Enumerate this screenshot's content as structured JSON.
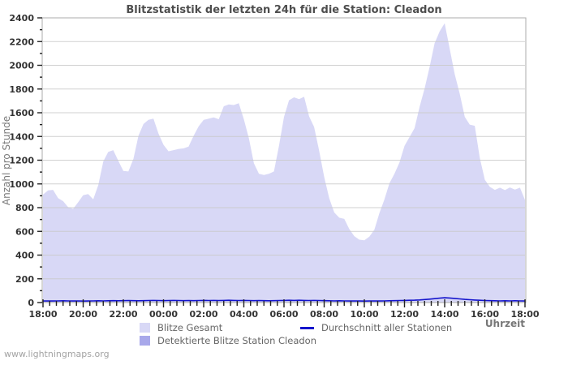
{
  "title": "Blitzstatistik der letzten 24h für die Station: Cleadon",
  "watermark": "www.lightningmaps.org",
  "chart_data": {
    "type": "area",
    "title": "Blitzstatistik der letzten 24h für die Station: Cleadon",
    "xlabel": "Uhrzeit",
    "ylabel": "Anzahl pro Stunde",
    "ylim": [
      0,
      2400
    ],
    "y_major_step": 200,
    "y_minor_step": 100,
    "grid": "horizontal",
    "legend_position": "bottom",
    "x_start": "18:00",
    "x_step_minutes": 15,
    "x_total_minutes": 1440,
    "x_minor_tick_minutes": 20,
    "x_ticks": [
      "18:00",
      "20:00",
      "22:00",
      "00:00",
      "02:00",
      "04:00",
      "06:00",
      "08:00",
      "10:00",
      "12:00",
      "14:00",
      "16:00",
      "18:00"
    ],
    "series": [
      {
        "name": "Blitze Gesamt",
        "type": "area",
        "color": "#d8d8f6",
        "values": [
          910,
          945,
          950,
          880,
          855,
          805,
          790,
          845,
          905,
          915,
          870,
          990,
          1190,
          1270,
          1285,
          1195,
          1110,
          1105,
          1210,
          1405,
          1505,
          1540,
          1550,
          1425,
          1330,
          1275,
          1285,
          1295,
          1300,
          1315,
          1405,
          1485,
          1540,
          1550,
          1560,
          1545,
          1655,
          1670,
          1665,
          1680,
          1545,
          1385,
          1175,
          1085,
          1075,
          1085,
          1105,
          1320,
          1565,
          1705,
          1730,
          1715,
          1735,
          1570,
          1480,
          1280,
          1060,
          880,
          760,
          715,
          705,
          620,
          560,
          530,
          525,
          555,
          615,
          755,
          870,
          1005,
          1085,
          1180,
          1320,
          1395,
          1470,
          1650,
          1805,
          1985,
          2185,
          2285,
          2355,
          2140,
          1925,
          1760,
          1565,
          1500,
          1490,
          1220,
          1035,
          975,
          950,
          968,
          948,
          970,
          952,
          968,
          865
        ]
      },
      {
        "name": "Detektierte Blitze Station Cleadon",
        "type": "area",
        "color": "#a8a8ea",
        "values": [
          0,
          0,
          0,
          0,
          0,
          0,
          0,
          0,
          0,
          0,
          0,
          0,
          0,
          0,
          0,
          0,
          0,
          0,
          0,
          0,
          0,
          0,
          0,
          0,
          0,
          0,
          0,
          0,
          0,
          0,
          0,
          0,
          0,
          0,
          0,
          0,
          0,
          0,
          0,
          0,
          0,
          0,
          0,
          0,
          0,
          0,
          0,
          0,
          0,
          0,
          0,
          0,
          0,
          0,
          0,
          0,
          0,
          0,
          0,
          0,
          0,
          0,
          0,
          0,
          0,
          0,
          0,
          0,
          0,
          0,
          0,
          0,
          0,
          0,
          0,
          0,
          0,
          0,
          0,
          0,
          0,
          0,
          0,
          0,
          0,
          0,
          0,
          0,
          0,
          0,
          0,
          0,
          0,
          0,
          0,
          0,
          0
        ]
      },
      {
        "name": "Durchschnitt aller Stationen",
        "type": "line",
        "color": "#1414cc",
        "values": [
          13,
          14,
          13,
          14,
          15,
          14,
          13,
          14,
          12,
          13,
          14,
          15,
          14,
          15,
          16,
          15,
          16,
          17,
          16,
          15,
          16,
          17,
          18,
          17,
          16,
          17,
          18,
          17,
          16,
          17,
          16,
          17,
          18,
          17,
          18,
          17,
          18,
          19,
          18,
          17,
          18,
          17,
          16,
          17,
          16,
          15,
          16,
          17,
          18,
          19,
          18,
          19,
          18,
          17,
          18,
          17,
          16,
          15,
          14,
          15,
          14,
          13,
          14,
          13,
          12,
          13,
          14,
          13,
          14,
          15,
          16,
          17,
          18,
          19,
          20,
          22,
          25,
          29,
          33,
          37,
          40,
          38,
          35,
          31,
          27,
          24,
          21,
          19,
          17,
          16,
          15,
          14,
          15,
          14,
          15,
          14,
          13
        ]
      }
    ],
    "colors": {
      "grid": "#c9c9c9",
      "border": "#ababab",
      "tick": "#222222",
      "tick_label": "#333333"
    }
  }
}
